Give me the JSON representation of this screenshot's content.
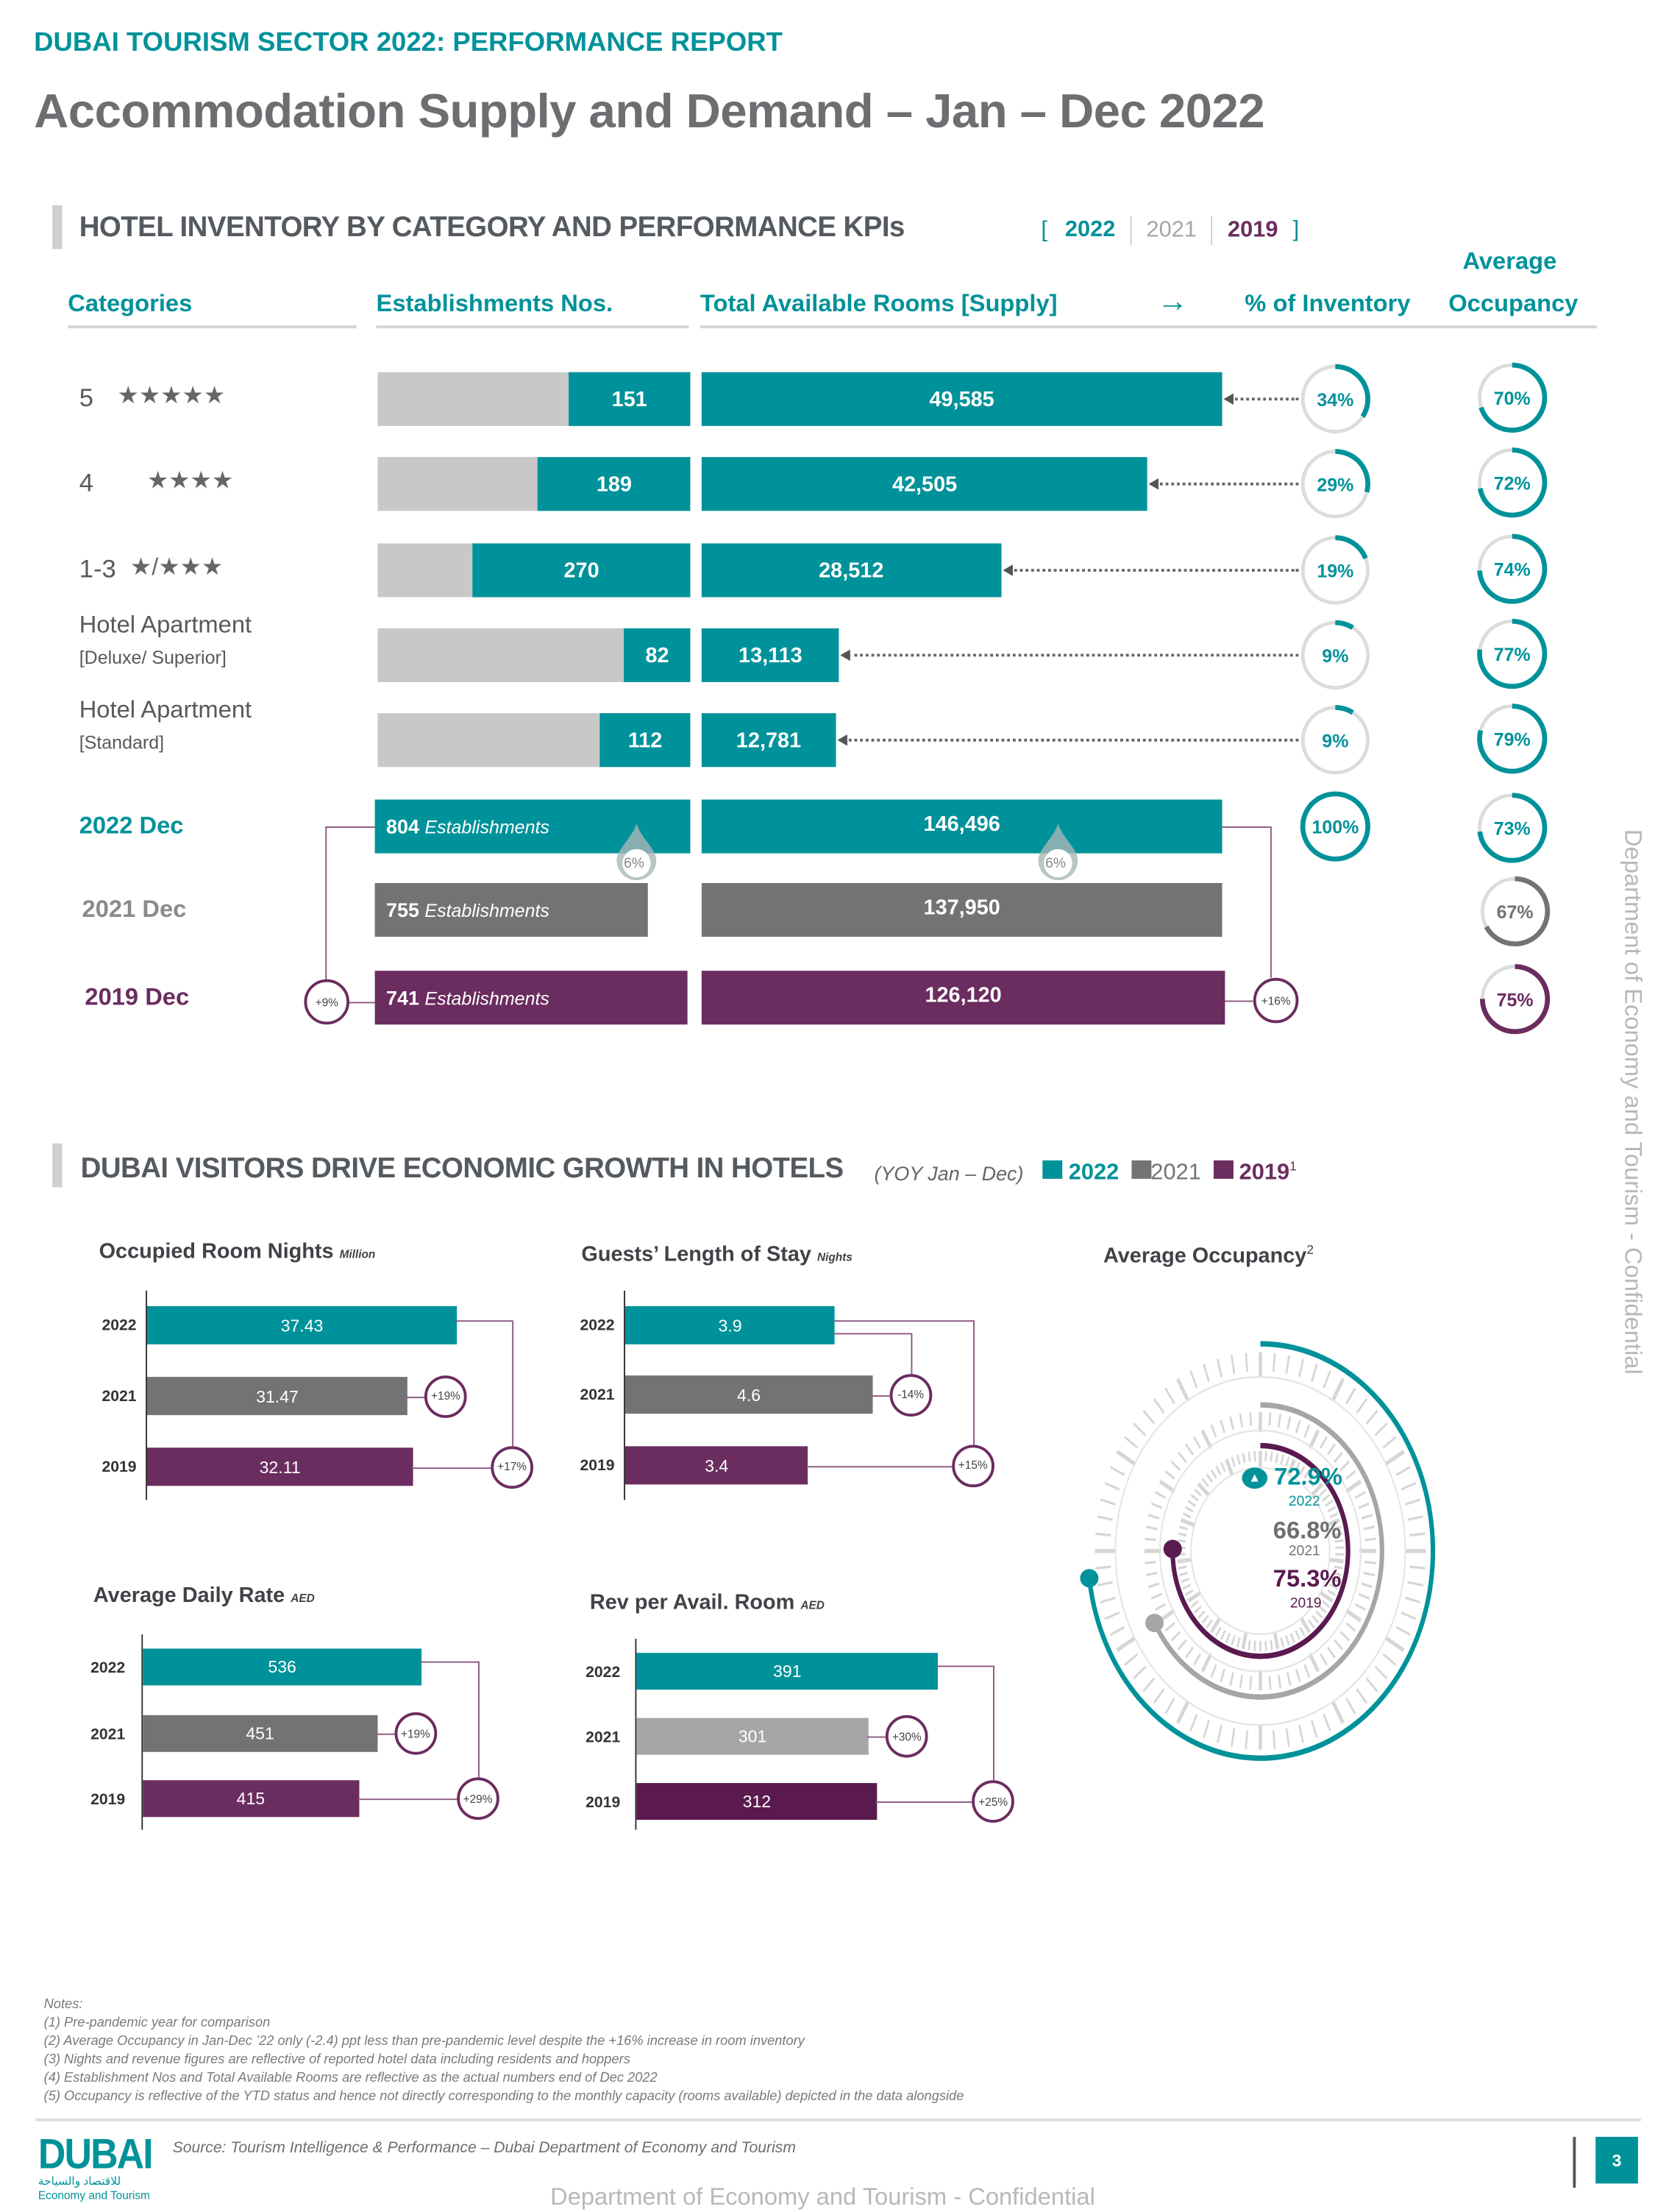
{
  "header": {
    "kicker": "DUBAI TOURISM SECTOR 2022: PERFORMANCE REPORT",
    "title": "Accommodation Supply and Demand – Jan – Dec 2022"
  },
  "colors": {
    "c2022": "#00929a",
    "c2021": "#737373",
    "c2019": "#6b2c5f",
    "light_gray": "#c8c8c8",
    "rev_2021": "#a6a6a6",
    "rev_2019": "#5a1a4f"
  },
  "inventory": {
    "title": "HOTEL INVENTORY BY CATEGORY AND PERFORMANCE KPIs",
    "legend": {
      "open": "[",
      "close": "]",
      "y2022": "2022",
      "y2021": "2021",
      "y2019": "2019"
    },
    "columns": {
      "categories": "Categories",
      "establishments": "Establishments Nos.",
      "rooms": "Total Available Rooms [Supply]",
      "arrow_icon": "arrow-right-icon",
      "pct_inventory": "% of Inventory",
      "occupancy_l1": "Average",
      "occupancy_l2": "Occupancy"
    },
    "rows": [
      {
        "category": "5",
        "stars": "★★★★★",
        "establishments": "151",
        "rooms": "49,585",
        "pct_inventory": "34%",
        "occupancy": "70%"
      },
      {
        "category": "4",
        "stars": "★★★★",
        "establishments": "189",
        "rooms": "42,505",
        "pct_inventory": "29%",
        "occupancy": "72%"
      },
      {
        "category": "1-3",
        "stars": "★/★★★",
        "establishments": "270",
        "rooms": "28,512",
        "pct_inventory": "19%",
        "occupancy": "74%"
      },
      {
        "category": "Hotel Apartment",
        "sub": "[Deluxe/ Superior]",
        "establishments": "82",
        "rooms": "13,113",
        "pct_inventory": "9%",
        "occupancy": "77%"
      },
      {
        "category": "Hotel Apartment",
        "sub": "[Standard]",
        "establishments": "112",
        "rooms": "12,781",
        "pct_inventory": "9%",
        "occupancy": "79%"
      }
    ],
    "totals": [
      {
        "label": "2022 Dec",
        "establishments": "804",
        "est_unit": "Establishments",
        "rooms": "146,496",
        "pct_inventory": "100%",
        "occupancy": "73%",
        "color": "#00929a"
      },
      {
        "label": "2021 Dec",
        "establishments": "755",
        "est_unit": "Establishments",
        "rooms": "137,950",
        "occupancy": "67%",
        "color": "#737373"
      },
      {
        "label": "2019 Dec",
        "establishments": "741",
        "est_unit": "Establishments",
        "rooms": "126,120",
        "occupancy": "75%",
        "color": "#6b2c5f"
      }
    ],
    "growth": {
      "est_vs_2021": "6%",
      "rooms_vs_2021": "6%",
      "est_vs_2019": "+9%",
      "rooms_vs_2019": "+16%"
    }
  },
  "visitors": {
    "title": "DUBAI VISITORS DRIVE ECONOMIC GROWTH IN HOTELS",
    "subtitle": "(YOY Jan – Dec)",
    "legend": [
      "2022",
      "2021",
      "2019"
    ],
    "legend_footnote": "1"
  },
  "chart_data": [
    {
      "type": "bar",
      "title": "Occupied Room Nights",
      "unit": "Million",
      "categories": [
        "2022",
        "2021",
        "2019"
      ],
      "values": [
        37.43,
        31.47,
        32.11
      ],
      "labels": [
        "37.43",
        "31.47",
        "32.11"
      ],
      "change_vs_2021": "+19%",
      "change_vs_2019": "+17%"
    },
    {
      "type": "bar",
      "title": "Guests’ Length of Stay",
      "unit": "Nights",
      "categories": [
        "2022",
        "2021",
        "2019"
      ],
      "values": [
        3.9,
        4.6,
        3.4
      ],
      "labels": [
        "3.9",
        "4.6",
        "3.4"
      ],
      "change_vs_2021": "-14%",
      "change_vs_2019": "+15%"
    },
    {
      "type": "bar",
      "title": "Average Daily Rate",
      "unit": "AED",
      "categories": [
        "2022",
        "2021",
        "2019"
      ],
      "values": [
        536,
        451,
        415
      ],
      "labels": [
        "536",
        "451",
        "415"
      ],
      "change_vs_2021": "+19%",
      "change_vs_2019": "+29%"
    },
    {
      "type": "bar",
      "title": "Rev per Avail. Room",
      "unit": "AED",
      "categories": [
        "2022",
        "2021",
        "2019"
      ],
      "values": [
        391,
        301,
        312
      ],
      "labels": [
        "391",
        "301",
        "312"
      ],
      "change_vs_2021": "+30%",
      "change_vs_2019": "+25%"
    },
    {
      "type": "gauge",
      "title": "Average Occupancy",
      "footnote": "2",
      "series": [
        {
          "year": "2022",
          "value": 72.9,
          "label": "72.9%"
        },
        {
          "year": "2021",
          "value": 66.8,
          "label": "66.8%"
        },
        {
          "year": "2019",
          "value": 75.3,
          "label": "75.3%"
        }
      ],
      "range": [
        0,
        100
      ]
    }
  ],
  "notes": {
    "heading": "Notes:",
    "items": [
      "(1) Pre-pandemic year  for comparison",
      "(2) Average Occupancy in Jan-Dec ’22 only (-2.4) ppt less than pre-pandemic level despite the +16% increase in room inventory",
      "(3) Nights and revenue figures are reflective of reported hotel data including residents and hoppers",
      "(4) Establishment Nos and Total Available Rooms are reflective as the actual numbers end of Dec 2022",
      "(5) Occupancy is reflective of the YTD status and hence not directly corresponding to the monthly capacity (rooms available) depicted in the data alongside"
    ]
  },
  "footer": {
    "source": "Source: Tourism Intelligence & Performance – Dubai Department of Economy and Tourism",
    "page_number": "3",
    "logo_word": "DUBAI",
    "logo_arabic": "للاقتصاد والسياحة",
    "logo_english": "Economy and Tourism",
    "watermark": "Department of Economy and Tourism - Confidential"
  }
}
